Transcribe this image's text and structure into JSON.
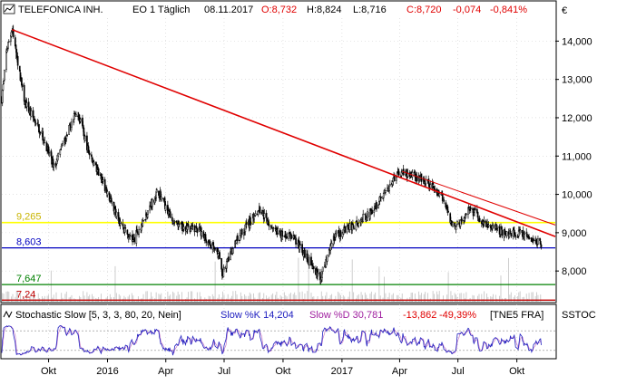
{
  "header": {
    "name": "TELEFONICA INH.",
    "exchange_period": "EO 1 Täglich",
    "date": "08.11.2017",
    "open": "O:8,732",
    "high": "H:8,824",
    "low": "L:8,716",
    "close": "C:8,720",
    "change": "-0,074",
    "change_pct": "-0,841%",
    "currency": "€"
  },
  "indicator": {
    "title": "Stochastic Slow [5, 3, 3, 80, 20, Nein]",
    "k_label": "Slow %K 14,204",
    "d_label": "Slow %D 30,781",
    "diff": "-13,862",
    "diff_pct": "-49,39%",
    "source": "[TNE5 FRA]",
    "short_code": "SSTOC"
  },
  "colors": {
    "candle": "#000000",
    "trendline": "#e00000",
    "yellow_line": "#ffff00",
    "blue_line": "#0000c0",
    "green_line": "#008000",
    "red_line": "#c00000",
    "negative_text": "#e00000",
    "stoch_k": "#2020c0",
    "stoch_d": "#a020a0",
    "volume": "#c8c8c8",
    "grid": "#d0d0d0"
  },
  "chart_data": {
    "type": "candlestick",
    "title": "TELEFONICA INH.",
    "ylim": [
      7.2,
      14.6
    ],
    "y_ticks": [
      "14,000",
      "13,000",
      "12,000",
      "11,000",
      "10,000",
      "9,000",
      "8,000"
    ],
    "y_tick_values": [
      14,
      13,
      12,
      11,
      10,
      9,
      8
    ],
    "x_ticks": [
      "Okt",
      "2016",
      "Apr",
      "Jul",
      "Okt",
      "2017",
      "Apr",
      "Jul",
      "Okt"
    ],
    "x_tick_dates": [
      "2015-10-01",
      "2016-01-01",
      "2016-04-01",
      "2016-07-01",
      "2016-10-01",
      "2017-01-01",
      "2017-04-01",
      "2017-07-01",
      "2017-10-01"
    ],
    "x_range": [
      "2015-07-20",
      "2017-11-30"
    ],
    "price_path": [
      [
        "2015-07-20",
        12.5
      ],
      [
        "2015-07-28",
        13.8
      ],
      [
        "2015-08-05",
        14.3
      ],
      [
        "2015-08-25",
        12.4
      ],
      [
        "2015-09-20",
        11.6
      ],
      [
        "2015-10-10",
        10.7
      ],
      [
        "2015-10-25",
        11.4
      ],
      [
        "2015-11-15",
        12.2
      ],
      [
        "2015-12-01",
        11.2
      ],
      [
        "2016-01-01",
        10.0
      ],
      [
        "2016-01-25",
        9.1
      ],
      [
        "2016-02-10",
        8.8
      ],
      [
        "2016-03-05",
        9.6
      ],
      [
        "2016-03-20",
        10.1
      ],
      [
        "2016-04-15",
        9.2
      ],
      [
        "2016-05-20",
        9.1
      ],
      [
        "2016-06-24",
        8.4
      ],
      [
        "2016-06-28",
        7.9
      ],
      [
        "2016-07-20",
        8.8
      ],
      [
        "2016-08-25",
        9.6
      ],
      [
        "2016-09-20",
        9.0
      ],
      [
        "2016-10-15",
        8.9
      ],
      [
        "2016-11-10",
        8.3
      ],
      [
        "2016-11-28",
        7.8
      ],
      [
        "2016-12-20",
        8.9
      ],
      [
        "2017-01-20",
        9.2
      ],
      [
        "2017-02-20",
        9.6
      ],
      [
        "2017-03-15",
        10.2
      ],
      [
        "2017-03-30",
        10.6
      ],
      [
        "2017-04-20",
        10.5
      ],
      [
        "2017-05-05",
        10.4
      ],
      [
        "2017-06-05",
        10.0
      ],
      [
        "2017-06-25",
        9.1
      ],
      [
        "2017-07-20",
        9.6
      ],
      [
        "2017-08-10",
        9.3
      ],
      [
        "2017-09-10",
        9.0
      ],
      [
        "2017-10-01",
        9.0
      ],
      [
        "2017-10-20",
        8.9
      ],
      [
        "2017-11-08",
        8.72
      ]
    ],
    "trendline": {
      "from": [
        "2015-08-05",
        14.3
      ],
      "to": [
        "2017-11-30",
        8.9
      ]
    },
    "trendline2": {
      "from": [
        "2017-04-05",
        10.6
      ],
      "to": [
        "2017-11-30",
        9.2
      ]
    },
    "horizontal_lines": [
      {
        "value": 9.265,
        "label": "9,265",
        "color": "#ffff00"
      },
      {
        "value": 8.603,
        "label": "8,603",
        "color": "#0000c0"
      },
      {
        "value": 7.647,
        "label": "7,647",
        "color": "#008000"
      },
      {
        "value": 7.24,
        "label": "7,24",
        "color": "#c00000"
      }
    ],
    "stochastic": {
      "ylim": [
        0,
        100
      ],
      "levels": [
        20,
        80
      ]
    }
  }
}
